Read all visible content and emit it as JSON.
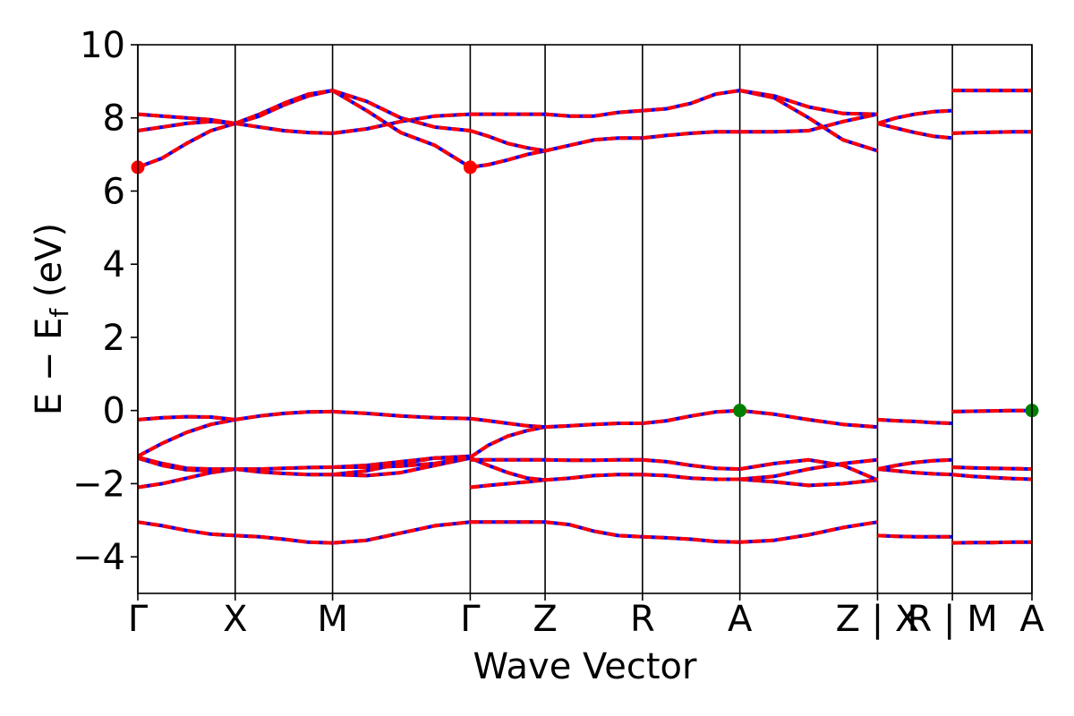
{
  "chart_data": {
    "type": "line",
    "title": "",
    "xlabel": "Wave Vector",
    "ylabel": "E − E",
    "ylabel_sub": "f",
    "ylabel_unit": " (eV)",
    "ylim": [
      -5,
      10
    ],
    "yticks": [
      -4,
      -2,
      0,
      2,
      4,
      6,
      8,
      10
    ],
    "ytick_labels": [
      "−4",
      "−2",
      "0",
      "2",
      "4",
      "6",
      "8",
      "10"
    ],
    "xlim": [
      0,
      9.183
    ],
    "kpath_ticks": [
      {
        "x": 0.0,
        "label": "Γ"
      },
      {
        "x": 1.0,
        "label": "X"
      },
      {
        "x": 2.0,
        "label": "M"
      },
      {
        "x": 3.414,
        "label": "Γ"
      },
      {
        "x": 4.183,
        "label": "Z"
      },
      {
        "x": 5.183,
        "label": "R"
      },
      {
        "x": 6.183,
        "label": "A"
      },
      {
        "x": 7.597,
        "label": "Z | X"
      },
      {
        "x": 8.366,
        "label": "R | M"
      },
      {
        "x": 9.183,
        "label": "A"
      }
    ],
    "segments": [
      {
        "from": "Γ",
        "to": "X",
        "x": [
          0.0,
          0.25,
          0.5,
          0.75,
          1.0
        ],
        "bands": [
          [
            -3.05,
            -3.15,
            -3.28,
            -3.38,
            -3.42
          ],
          [
            -2.1,
            -2.0,
            -1.85,
            -1.7,
            -1.6
          ],
          [
            -1.3,
            -1.5,
            -1.62,
            -1.65,
            -1.6
          ],
          [
            -1.28,
            -1.45,
            -1.58,
            -1.6,
            -1.6
          ],
          [
            -1.25,
            -0.9,
            -0.6,
            -0.38,
            -0.25
          ],
          [
            -0.25,
            -0.2,
            -0.17,
            -0.18,
            -0.25
          ],
          [
            6.65,
            6.9,
            7.3,
            7.65,
            7.85
          ],
          [
            7.65,
            7.75,
            7.85,
            7.9,
            7.85
          ],
          [
            8.1,
            8.05,
            8.0,
            7.95,
            7.85
          ]
        ]
      },
      {
        "from": "X",
        "to": "M",
        "x": [
          1.0,
          1.25,
          1.5,
          1.75,
          2.0
        ],
        "bands": [
          [
            -3.42,
            -3.45,
            -3.52,
            -3.6,
            -3.62
          ],
          [
            -1.6,
            -1.68,
            -1.72,
            -1.75,
            -1.75
          ],
          [
            -1.6,
            -1.6,
            -1.58,
            -1.56,
            -1.55
          ],
          [
            -0.25,
            -0.15,
            -0.08,
            -0.04,
            -0.03
          ],
          [
            7.85,
            7.75,
            7.65,
            7.6,
            7.58
          ],
          [
            7.85,
            8.05,
            8.35,
            8.6,
            8.75
          ],
          [
            7.85,
            8.1,
            8.4,
            8.65,
            8.75
          ]
        ]
      },
      {
        "from": "M",
        "to": "Γ",
        "x": [
          2.0,
          2.35,
          2.7,
          3.05,
          3.414
        ],
        "bands": [
          [
            -3.62,
            -3.55,
            -3.35,
            -3.15,
            -3.05
          ],
          [
            -1.75,
            -1.78,
            -1.7,
            -1.5,
            -1.3
          ],
          [
            -1.75,
            -1.65,
            -1.45,
            -1.3,
            -1.25
          ],
          [
            -1.55,
            -1.55,
            -1.52,
            -1.45,
            -1.28
          ],
          [
            -1.55,
            -1.5,
            -1.4,
            -1.3,
            -1.3
          ],
          [
            -0.03,
            -0.08,
            -0.15,
            -0.2,
            -0.22
          ],
          [
            7.58,
            7.7,
            7.9,
            8.05,
            8.1
          ],
          [
            8.75,
            8.2,
            7.6,
            7.25,
            6.65
          ],
          [
            8.75,
            8.45,
            8.0,
            7.75,
            7.65
          ]
        ]
      },
      {
        "from": "Γ",
        "to": "Z",
        "x": [
          3.414,
          3.6,
          3.8,
          4.0,
          4.183
        ],
        "bands": [
          [
            -3.05,
            -3.05,
            -3.05,
            -3.05,
            -3.05
          ],
          [
            -2.1,
            -2.05,
            -2.0,
            -1.95,
            -1.9
          ],
          [
            -1.3,
            -1.5,
            -1.7,
            -1.85,
            -1.9
          ],
          [
            -1.35,
            -1.35,
            -1.35,
            -1.35,
            -1.35
          ],
          [
            -1.28,
            -0.95,
            -0.7,
            -0.55,
            -0.45
          ],
          [
            -0.22,
            -0.28,
            -0.35,
            -0.42,
            -0.45
          ],
          [
            6.65,
            6.72,
            6.85,
            7.0,
            7.1
          ],
          [
            7.65,
            7.5,
            7.3,
            7.18,
            7.1
          ],
          [
            8.1,
            8.1,
            8.1,
            8.1,
            8.1
          ]
        ]
      },
      {
        "from": "Z",
        "to": "R",
        "x": [
          4.183,
          4.433,
          4.683,
          4.933,
          5.183
        ],
        "bands": [
          [
            -3.05,
            -3.12,
            -3.3,
            -3.42,
            -3.45
          ],
          [
            -1.9,
            -1.85,
            -1.78,
            -1.75,
            -1.75
          ],
          [
            -1.35,
            -1.36,
            -1.36,
            -1.35,
            -1.35
          ],
          [
            -0.45,
            -0.42,
            -0.38,
            -0.35,
            -0.35
          ],
          [
            7.1,
            7.25,
            7.4,
            7.45,
            7.45
          ],
          [
            8.1,
            8.05,
            8.05,
            8.15,
            8.2
          ]
        ]
      },
      {
        "from": "R",
        "to": "A",
        "x": [
          5.183,
          5.433,
          5.683,
          5.933,
          6.183
        ],
        "bands": [
          [
            -3.45,
            -3.48,
            -3.52,
            -3.58,
            -3.6
          ],
          [
            -1.75,
            -1.78,
            -1.85,
            -1.88,
            -1.88
          ],
          [
            -1.35,
            -1.4,
            -1.5,
            -1.58,
            -1.6
          ],
          [
            -0.35,
            -0.28,
            -0.15,
            -0.04,
            0.0
          ],
          [
            7.45,
            7.52,
            7.58,
            7.62,
            7.62
          ],
          [
            8.2,
            8.25,
            8.4,
            8.65,
            8.75
          ]
        ]
      },
      {
        "from": "A",
        "to": "Z",
        "x": [
          6.183,
          6.536,
          6.89,
          7.243,
          7.597
        ],
        "bands": [
          [
            -3.6,
            -3.55,
            -3.4,
            -3.2,
            -3.05
          ],
          [
            -1.88,
            -1.95,
            -2.05,
            -2.0,
            -1.9
          ],
          [
            -1.88,
            -1.8,
            -1.6,
            -1.45,
            -1.35
          ],
          [
            -1.6,
            -1.45,
            -1.35,
            -1.5,
            -1.9
          ],
          [
            0.0,
            -0.1,
            -0.25,
            -0.38,
            -0.45
          ],
          [
            7.62,
            7.62,
            7.65,
            7.9,
            8.1
          ],
          [
            8.75,
            8.55,
            8.0,
            7.4,
            7.1
          ],
          [
            8.75,
            8.6,
            8.3,
            8.12,
            8.1
          ]
        ]
      },
      {
        "from": "X",
        "to": "R",
        "x": [
          7.597,
          7.79,
          7.98,
          8.17,
          8.366
        ],
        "bands": [
          [
            -3.42,
            -3.44,
            -3.45,
            -3.45,
            -3.45
          ],
          [
            -1.6,
            -1.65,
            -1.7,
            -1.73,
            -1.75
          ],
          [
            -1.6,
            -1.5,
            -1.42,
            -1.37,
            -1.35
          ],
          [
            -0.25,
            -0.28,
            -0.3,
            -0.33,
            -0.35
          ],
          [
            7.85,
            7.72,
            7.6,
            7.5,
            7.45
          ],
          [
            7.85,
            8.0,
            8.1,
            8.17,
            8.2
          ]
        ]
      },
      {
        "from": "M",
        "to": "A",
        "x": [
          8.366,
          8.57,
          8.77,
          8.98,
          9.183
        ],
        "bands": [
          [
            -3.62,
            -3.61,
            -3.61,
            -3.6,
            -3.6
          ],
          [
            -1.75,
            -1.8,
            -1.83,
            -1.86,
            -1.88
          ],
          [
            -1.55,
            -1.57,
            -1.58,
            -1.59,
            -1.6
          ],
          [
            -0.03,
            -0.02,
            -0.01,
            0.0,
            0.0
          ],
          [
            7.58,
            7.6,
            7.61,
            7.62,
            7.62
          ],
          [
            8.75,
            8.75,
            8.75,
            8.75,
            8.75
          ]
        ]
      }
    ],
    "markers": [
      {
        "x": 0.0,
        "y": 6.65,
        "color": "#ff0000",
        "note": "CBM"
      },
      {
        "x": 3.414,
        "y": 6.65,
        "color": "#ff0000",
        "note": "CBM"
      },
      {
        "x": 6.183,
        "y": 0.0,
        "color": "#008000",
        "note": "VBM"
      },
      {
        "x": 9.183,
        "y": 0.0,
        "color": "#008000",
        "note": "VBM"
      }
    ],
    "colors": {
      "line_under": "#0000ff",
      "line_over": "#ff0000",
      "axis": "#000000"
    }
  }
}
